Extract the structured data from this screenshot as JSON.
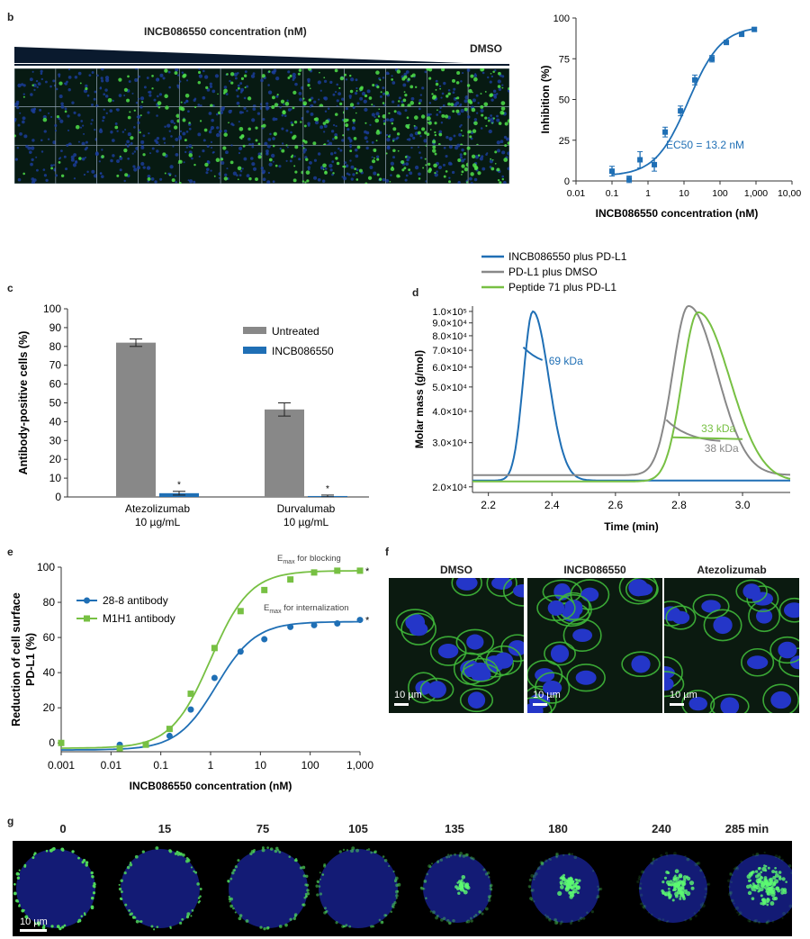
{
  "panels": {
    "b": {
      "label": "b",
      "image_title": "INCB086550 concentration (nM)",
      "dmso_label": "DMSO",
      "chart_data": {
        "type": "scatter",
        "ylabel": "Inhibition (%)",
        "xlabel": "INCB086550 concentration (nM)",
        "xscale": "log",
        "xlim": [
          0.01,
          10000
        ],
        "ylim": [
          0,
          100
        ],
        "xticks": [
          "0.01",
          "0.1",
          "1",
          "10",
          "100",
          "1,000",
          "10,000"
        ],
        "yticks": [
          "0",
          "25",
          "50",
          "75",
          "100"
        ],
        "annotation": "EC50 = 13.2 nM",
        "color": "#1f6fb5",
        "x": [
          0.1,
          0.3,
          0.6,
          1.5,
          3,
          8,
          20,
          60,
          150,
          400,
          900
        ],
        "y": [
          6,
          1,
          13,
          10,
          30,
          43,
          62,
          75,
          85,
          90,
          93
        ],
        "err": [
          3,
          2,
          5,
          4,
          3,
          3,
          3,
          2,
          1,
          1,
          1
        ]
      }
    },
    "c": {
      "label": "c",
      "chart_data": {
        "type": "bar",
        "ylabel": "Antibody-positive cells (%)",
        "ylim": [
          0,
          100
        ],
        "yticks": [
          "0",
          "10",
          "20",
          "30",
          "40",
          "50",
          "60",
          "70",
          "80",
          "90",
          "100"
        ],
        "categories": [
          "Atezolizumab\n10 µg/mL",
          "Durvalumab\n10 µg/mL"
        ],
        "category_lines": [
          [
            "Atezolizumab",
            "10 µg/mL"
          ],
          [
            "Durvalumab",
            "10 µg/mL"
          ]
        ],
        "series": [
          {
            "name": "Untreated",
            "color": "#888888",
            "values": [
              82,
              46.5
            ],
            "err": [
              2,
              3.5
            ]
          },
          {
            "name": "INCB086550",
            "color": "#1f6fb5",
            "values": [
              2,
              0.5
            ],
            "err": [
              1,
              0.5
            ]
          }
        ],
        "significance_marker": "*"
      }
    },
    "d": {
      "label": "d",
      "chart_data": {
        "type": "line",
        "ylabel": "Molar mass (g/mol)",
        "xlabel": "Time (min)",
        "xlim": [
          2.15,
          3.15
        ],
        "xticks": [
          "2.2",
          "2.4",
          "2.6",
          "2.8",
          "3.0"
        ],
        "yticks": [
          "2.0×10⁴",
          "3.0×10⁴",
          "4.0×10⁴",
          "5.0×10⁴",
          "6.0×10⁴",
          "7.0×10⁴",
          "8.0×10⁴",
          "9.0×10⁴",
          "1.0×10⁵"
        ],
        "series": [
          {
            "name": "INCB086550 plus PD-L1",
            "color": "#1f6fb5",
            "mass_label": "69 kDa"
          },
          {
            "name": "PD-L1 plus DMSO",
            "color": "#888888",
            "mass_label": "38 kDa"
          },
          {
            "name": "Peptide 71 plus PD-L1",
            "color": "#77c043",
            "mass_label": "33 kDa"
          }
        ]
      }
    },
    "e": {
      "label": "e",
      "chart_data": {
        "type": "scatter",
        "ylabel_lines": [
          "Reduction of cell surface",
          "PD-L1 (%)"
        ],
        "xlabel": "INCB086550 concentration (nM)",
        "xscale": "log",
        "xlim": [
          0.001,
          1000
        ],
        "ylim": [
          -5,
          100
        ],
        "xticks": [
          "0.001",
          "0.01",
          "0.1",
          "1",
          "10",
          "100",
          "1,000"
        ],
        "yticks": [
          "0",
          "20",
          "40",
          "60",
          "80",
          "100"
        ],
        "annotations": [
          {
            "base": "E",
            "sub": "max",
            "rest": " for blocking",
            "marker": "*"
          },
          {
            "base": "E",
            "sub": "max",
            "rest": " for internalization",
            "marker": "*"
          }
        ],
        "series": [
          {
            "name": "28-8 antibody",
            "color": "#1f6fb5",
            "marker": "circle",
            "x": [
              0.015,
              0.15,
              0.4,
              1.2,
              4,
              12,
              40,
              120,
              350,
              1000
            ],
            "y": [
              -1,
              4,
              19,
              37,
              52,
              59,
              66,
              67,
              68,
              70
            ]
          },
          {
            "name": "M1H1 antibody",
            "color": "#77c043",
            "marker": "square",
            "x": [
              0.001,
              0.015,
              0.05,
              0.15,
              0.4,
              1.2,
              4,
              12,
              40,
              120,
              350,
              1000
            ],
            "y": [
              0,
              -3,
              -1,
              8,
              28,
              54,
              75,
              87,
              93,
              97,
              98,
              98
            ]
          }
        ]
      }
    },
    "f": {
      "label": "f",
      "images": [
        {
          "title": "DMSO",
          "scale": "10 µm"
        },
        {
          "title": "INCB086550",
          "scale": "10 µm"
        },
        {
          "title": "Atezolizumab",
          "scale": "10 µm"
        }
      ]
    },
    "g": {
      "label": "g",
      "timepoints": [
        "0",
        "15",
        "75",
        "105",
        "135",
        "180",
        "240",
        "285 min"
      ],
      "scale": "10 µm"
    }
  }
}
